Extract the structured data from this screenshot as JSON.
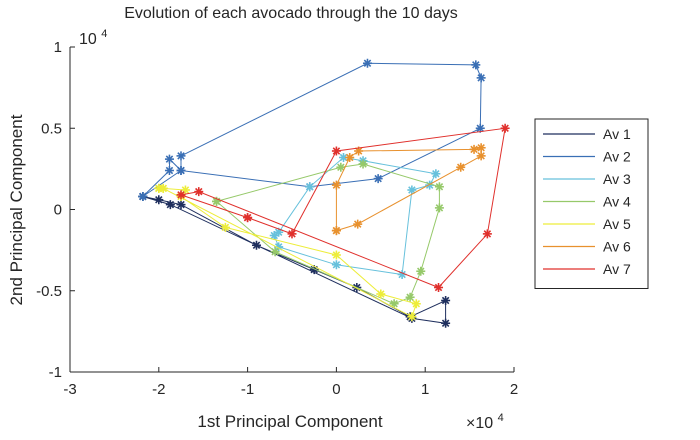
{
  "chart_data": {
    "type": "line",
    "title": "Evolution of each avocado through the 10 days",
    "xlabel": "1st Principal Component",
    "ylabel": "2nd Principal Component",
    "xlim": [
      -30000,
      20000
    ],
    "ylim": [
      -10000,
      10000
    ],
    "x_ticks": [
      -30000,
      -20000,
      -10000,
      0,
      10000,
      20000
    ],
    "x_tick_labels": [
      "-3",
      "-2",
      "-1",
      "0",
      "1",
      "2"
    ],
    "y_ticks": [
      -10000,
      -5000,
      0,
      5000,
      10000
    ],
    "y_tick_labels": [
      "-1",
      "-0.5",
      "0",
      "0.5",
      "1"
    ],
    "x_exponent_label": "×10",
    "x_exponent_power": "4",
    "y_exponent_label": "10",
    "y_exponent_power": "4",
    "grid": false,
    "legend_position": "right",
    "marker": "asterisk",
    "series": [
      {
        "name": "Av 1",
        "color": "#1f2f5e",
        "x": [
          -21800,
          -20000,
          -17500,
          -9000,
          -2500,
          2300,
          8300,
          12300,
          12300,
          8500,
          -18700,
          -21800
        ],
        "y": [
          800,
          600,
          300,
          -2200,
          -3700,
          -4800,
          -6600,
          -5600,
          -7000,
          -6700,
          300,
          800
        ]
      },
      {
        "name": "Av 2",
        "color": "#3a6fb5",
        "x": [
          -21800,
          -18800,
          -18800,
          -17500,
          -17500,
          3500,
          15700,
          16300,
          16200,
          4700,
          -3000,
          -17500,
          -21800
        ],
        "y": [
          800,
          2400,
          3100,
          2400,
          3300,
          9000,
          8900,
          8100,
          5000,
          1900,
          1400,
          2400,
          800
        ]
      },
      {
        "name": "Av 3",
        "color": "#67c1dc",
        "x": [
          -6500,
          -3000,
          800,
          3000,
          11200,
          10500,
          8500,
          7400,
          0,
          -6500,
          -7000
        ],
        "y": [
          -1400,
          1400,
          3200,
          3000,
          2200,
          1500,
          1200,
          -4000,
          -3400,
          -2300,
          -1600
        ]
      },
      {
        "name": "Av 4",
        "color": "#96c96a",
        "x": [
          -13500,
          500,
          3000,
          11600,
          11600,
          9500,
          8300,
          6500,
          -6900,
          -13500
        ],
        "y": [
          500,
          2600,
          2800,
          1400,
          100,
          -3800,
          -5400,
          -5800,
          -2600,
          500
        ]
      },
      {
        "name": "Av 5",
        "color": "#eded3a",
        "x": [
          -20000,
          -19500,
          -17000,
          -17500,
          -12500,
          0,
          5000,
          9000,
          8500,
          -19500,
          -20000
        ],
        "y": [
          1300,
          1300,
          1200,
          800,
          -1100,
          -2800,
          -5200,
          -5800,
          -6600,
          1300,
          1300
        ]
      },
      {
        "name": "Av 6",
        "color": "#e8912e",
        "x": [
          -0.1,
          -0.1,
          1500,
          2500,
          15500,
          16300,
          16300,
          14000,
          2400,
          -0.1
        ],
        "y": [
          -1300,
          1500,
          3200,
          3600,
          3700,
          3800,
          3300,
          2600,
          -900,
          -1300
        ]
      },
      {
        "name": "Av 7",
        "color": "#e0302c",
        "x": [
          -10000,
          -5000,
          0,
          19000,
          17000,
          11500,
          -15500,
          -17500,
          -10000
        ],
        "y": [
          -500,
          -1500,
          3600,
          5000,
          -1500,
          -4800,
          1100,
          900,
          -500
        ]
      }
    ]
  }
}
